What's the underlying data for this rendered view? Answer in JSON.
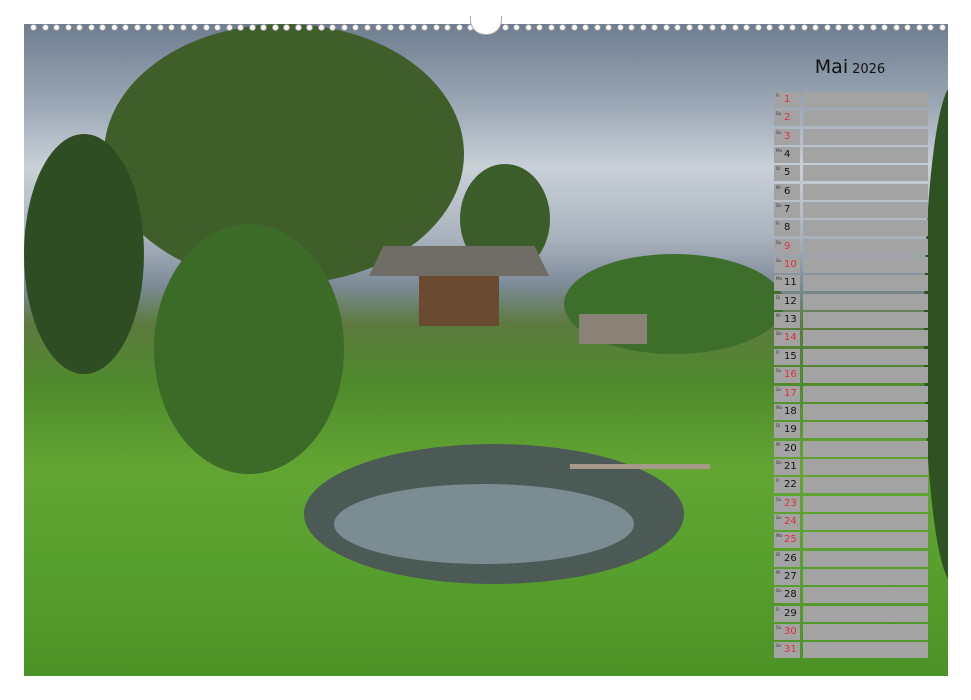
{
  "calendar": {
    "month": "Mai",
    "year": "2026",
    "days": [
      {
        "day": "1",
        "weekday": "Fr",
        "holiday": true
      },
      {
        "day": "2",
        "weekday": "Sa",
        "holiday": true
      },
      {
        "day": "3",
        "weekday": "So",
        "holiday": true
      },
      {
        "day": "4",
        "weekday": "Mo",
        "holiday": false
      },
      {
        "day": "5",
        "weekday": "Di",
        "holiday": false
      },
      {
        "day": "6",
        "weekday": "Mi",
        "holiday": false
      },
      {
        "day": "7",
        "weekday": "Do",
        "holiday": false
      },
      {
        "day": "8",
        "weekday": "Fr",
        "holiday": false
      },
      {
        "day": "9",
        "weekday": "Sa",
        "holiday": true
      },
      {
        "day": "10",
        "weekday": "So",
        "holiday": true
      },
      {
        "day": "11",
        "weekday": "Mo",
        "holiday": false
      },
      {
        "day": "12",
        "weekday": "Di",
        "holiday": false
      },
      {
        "day": "13",
        "weekday": "Mi",
        "holiday": false
      },
      {
        "day": "14",
        "weekday": "Do",
        "holiday": true
      },
      {
        "day": "15",
        "weekday": "Fr",
        "holiday": false
      },
      {
        "day": "16",
        "weekday": "Sa",
        "holiday": true
      },
      {
        "day": "17",
        "weekday": "So",
        "holiday": true
      },
      {
        "day": "18",
        "weekday": "Mo",
        "holiday": false
      },
      {
        "day": "19",
        "weekday": "Di",
        "holiday": false
      },
      {
        "day": "20",
        "weekday": "Mi",
        "holiday": false
      },
      {
        "day": "21",
        "weekday": "Do",
        "holiday": false
      },
      {
        "day": "22",
        "weekday": "Fr",
        "holiday": false
      },
      {
        "day": "23",
        "weekday": "Sa",
        "holiday": true
      },
      {
        "day": "24",
        "weekday": "So",
        "holiday": true
      },
      {
        "day": "25",
        "weekday": "Mo",
        "holiday": true
      },
      {
        "day": "26",
        "weekday": "Di",
        "holiday": false
      },
      {
        "day": "27",
        "weekday": "Mi",
        "holiday": false
      },
      {
        "day": "28",
        "weekday": "Do",
        "holiday": false
      },
      {
        "day": "29",
        "weekday": "Fr",
        "holiday": false
      },
      {
        "day": "30",
        "weekday": "Sa",
        "holiday": true
      },
      {
        "day": "31",
        "weekday": "So",
        "holiday": true
      }
    ],
    "colors": {
      "holiday": "#e0303a",
      "cell": "#a3a3a3"
    }
  },
  "photo": {
    "subject": "rural-landscape-with-pond-and-wooden-house"
  }
}
